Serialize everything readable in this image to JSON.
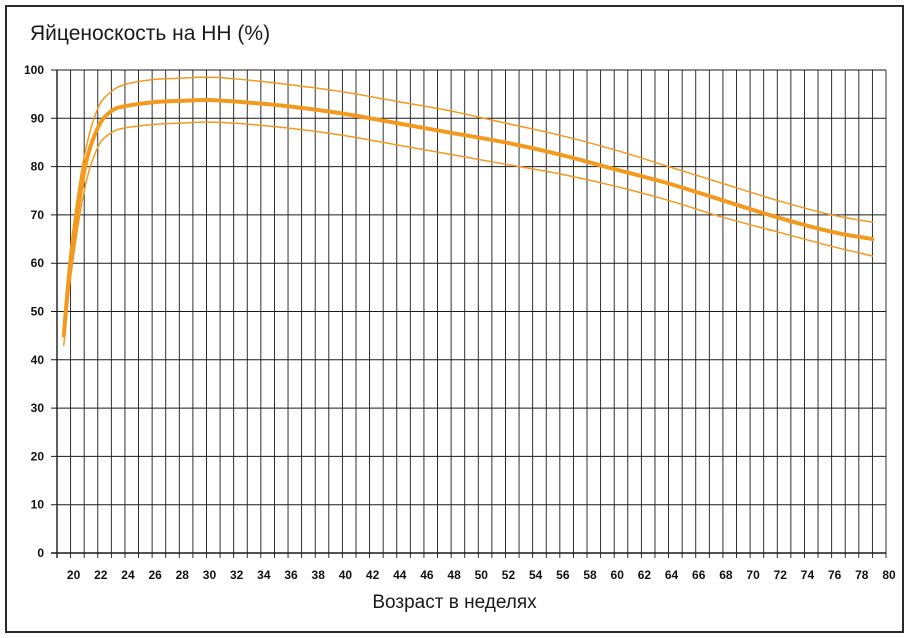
{
  "chart_data": {
    "type": "line",
    "title": "Яйценоскость на НН (%)",
    "xlabel": "Возраст в неделях",
    "ylabel": "",
    "xlim": [
      19,
      80
    ],
    "ylim": [
      0,
      100
    ],
    "grid": true,
    "x_ticks": [
      20,
      22,
      24,
      26,
      28,
      30,
      32,
      34,
      36,
      38,
      40,
      42,
      44,
      46,
      48,
      50,
      52,
      54,
      56,
      58,
      60,
      62,
      64,
      66,
      68,
      70,
      72,
      74,
      76,
      78,
      80
    ],
    "y_ticks": [
      0,
      10,
      20,
      30,
      40,
      50,
      60,
      70,
      80,
      90,
      100
    ],
    "colors": {
      "line": "#f39a1e",
      "grid": "#1a1a1a",
      "frame": "#2a2a2a"
    },
    "series": [
      {
        "style": "main",
        "x": [
          19.5,
          20,
          21,
          22,
          23,
          24,
          26,
          28,
          30,
          32,
          36,
          40,
          44,
          48,
          52,
          56,
          60,
          64,
          68,
          72,
          76,
          79
        ],
        "y": [
          45,
          60,
          79,
          88,
          91.5,
          92.5,
          93.3,
          93.6,
          93.8,
          93.5,
          92.5,
          91,
          89,
          87,
          85,
          82.5,
          79.5,
          76.5,
          73,
          69.5,
          66.5,
          65
        ]
      },
      {
        "style": "upper",
        "x": [
          19.5,
          20,
          21,
          22,
          23,
          24,
          26,
          28,
          30,
          32,
          36,
          40,
          44,
          48,
          52,
          56,
          60,
          64,
          68,
          72,
          76,
          79
        ],
        "y": [
          48,
          63,
          82,
          92,
          95.5,
          97,
          98,
          98.3,
          98.5,
          98.2,
          97,
          95.5,
          93.5,
          91.5,
          89,
          86.5,
          83.5,
          80,
          76.5,
          73,
          70,
          68.5
        ]
      },
      {
        "style": "lower",
        "x": [
          19.5,
          20,
          21,
          22,
          23,
          24,
          26,
          28,
          30,
          32,
          36,
          40,
          44,
          48,
          52,
          56,
          60,
          64,
          68,
          72,
          76,
          79
        ],
        "y": [
          43,
          57,
          75,
          84,
          87,
          88,
          88.7,
          89,
          89.2,
          89,
          88,
          86.5,
          84.5,
          82.5,
          80.5,
          78.5,
          76,
          73,
          69.5,
          66.5,
          63.5,
          61.5
        ]
      }
    ]
  }
}
